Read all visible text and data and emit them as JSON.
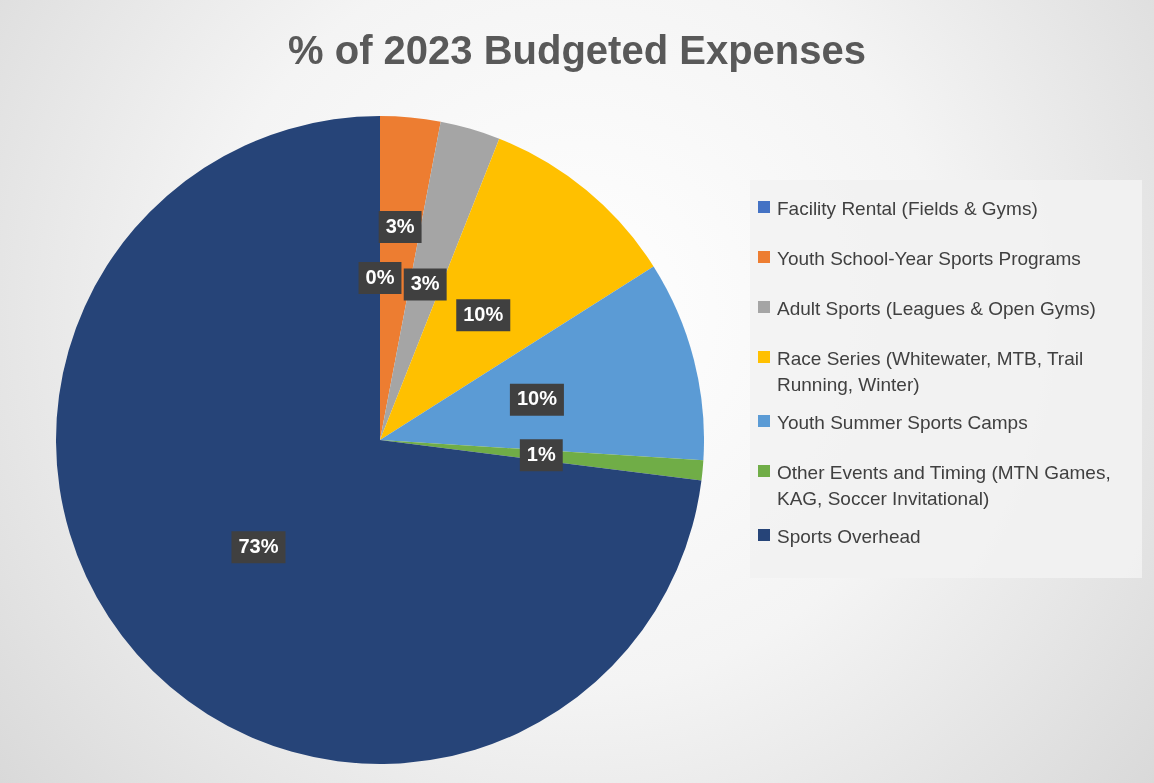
{
  "chart_data": {
    "type": "pie",
    "title": "% of 2023 Budgeted Expenses",
    "categories": [
      "Facility Rental (Fields & Gyms)",
      "Youth School-Year Sports Programs",
      "Adult Sports (Leagues & Open Gyms)",
      "Race Series (Whitewater, MTB, Trail Running, Winter)",
      "Youth Summer Sports Camps",
      "Other Events and Timing (MTN Games, KAG, Soccer Invitational)",
      "Sports Overhead"
    ],
    "values": [
      0,
      3,
      3,
      10,
      10,
      1,
      73
    ],
    "value_labels": [
      "0%",
      "3%",
      "3%",
      "10%",
      "10%",
      "1%",
      "73%"
    ],
    "colors": [
      "#4472c4",
      "#ed7d31",
      "#a5a5a5",
      "#ffc000",
      "#5b9bd5",
      "#70ad47",
      "#264478"
    ],
    "legend": "right"
  }
}
